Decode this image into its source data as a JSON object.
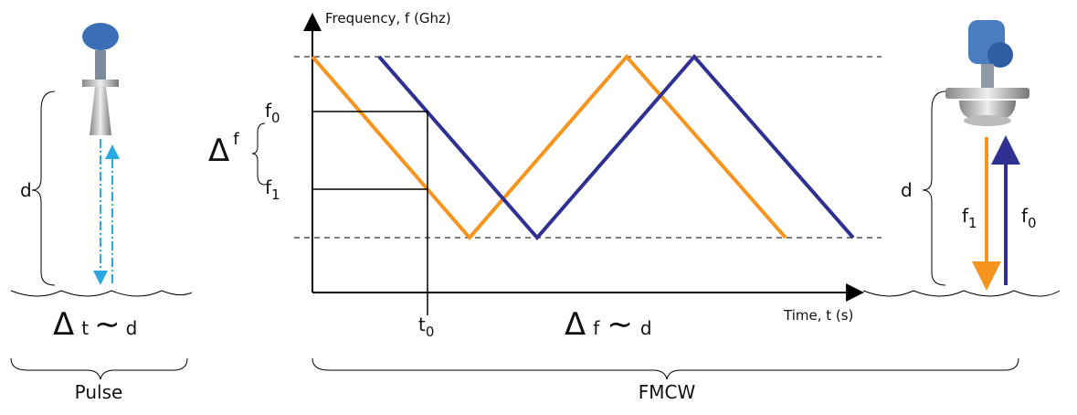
{
  "pulse": {
    "d_label": "d",
    "relation": [
      "Δ",
      "t",
      "∼",
      "d"
    ],
    "caption": "Pulse"
  },
  "fmcw": {
    "y_axis_label": "Frequency, f (Ghz)",
    "x_axis_label": "Time, t (s)",
    "f0": {
      "base": "f",
      "sub": "0"
    },
    "f1": {
      "base": "f",
      "sub": "1"
    },
    "delta_f": [
      "Δ",
      "f"
    ],
    "t0": {
      "base": "t",
      "sub": "0"
    },
    "relation": [
      "Δ",
      "f",
      "∼",
      "d"
    ],
    "caption": "FMCW"
  },
  "radar": {
    "d_label": "d",
    "f1": {
      "base": "f",
      "sub": "1"
    },
    "f0": {
      "base": "f",
      "sub": "0"
    }
  }
}
